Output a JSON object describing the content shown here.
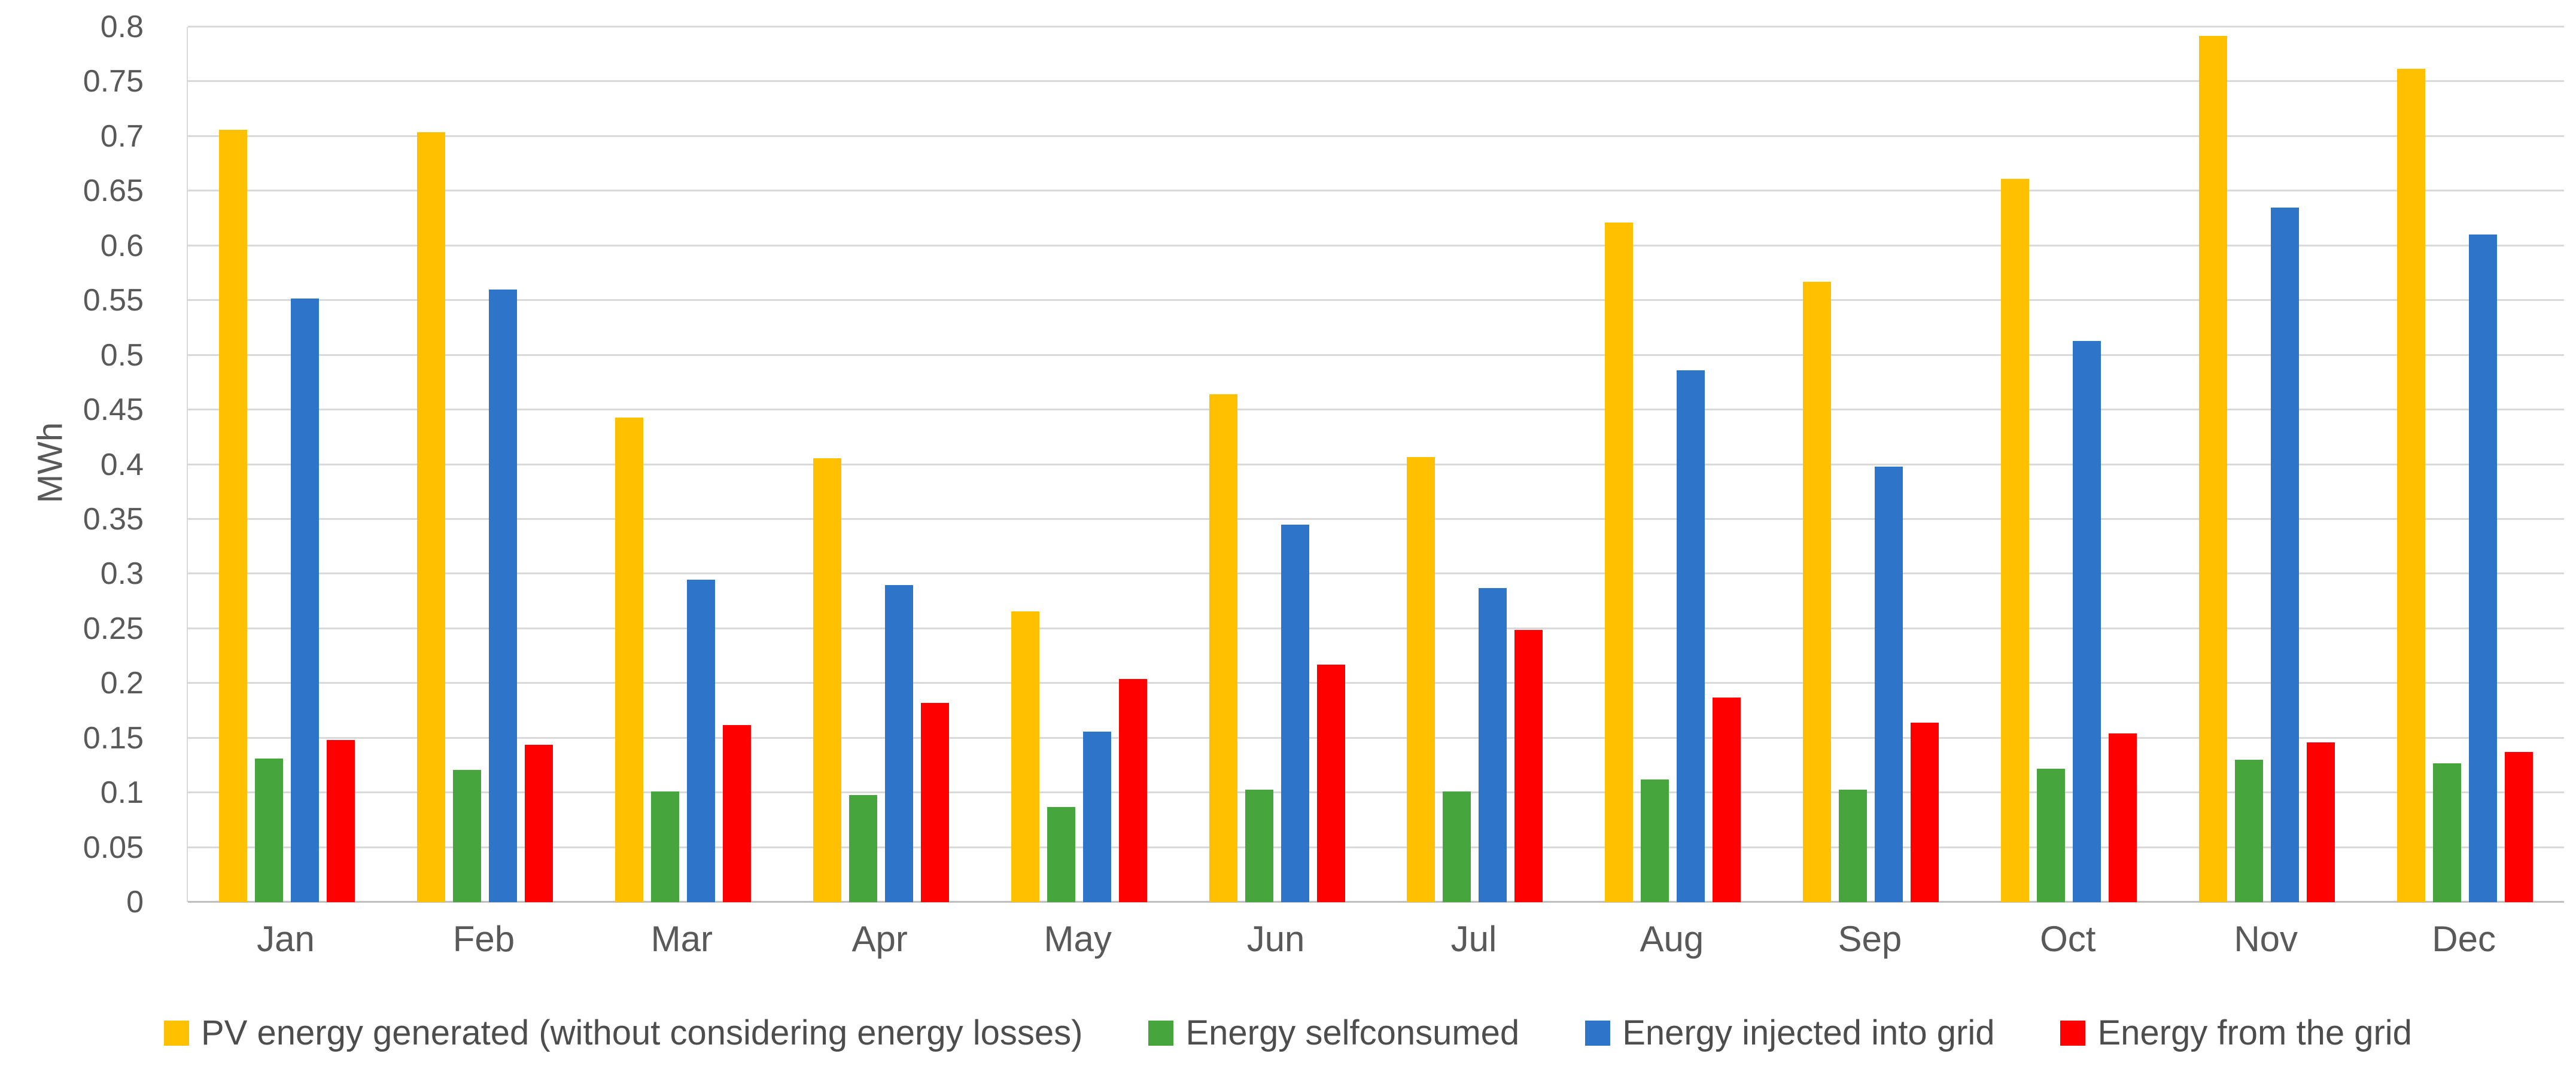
{
  "chart_data": {
    "type": "bar",
    "title": "",
    "xlabel": "",
    "ylabel": "MWh",
    "categories": [
      "Jan",
      "Feb",
      "Mar",
      "Apr",
      "May",
      "Jun",
      "Jul",
      "Aug",
      "Sep",
      "Oct",
      "Nov",
      "Dec"
    ],
    "series": [
      {
        "name": "PV energy generated (without considering energy losses)",
        "color": "#FFC000",
        "values": [
          0.706,
          0.704,
          0.443,
          0.406,
          0.266,
          0.464,
          0.407,
          0.621,
          0.567,
          0.661,
          0.792,
          0.762
        ]
      },
      {
        "name": "Energy selfconsumed",
        "color": "#46A53D",
        "values": [
          0.131,
          0.121,
          0.101,
          0.098,
          0.087,
          0.103,
          0.101,
          0.112,
          0.103,
          0.122,
          0.13,
          0.127
        ]
      },
      {
        "name": "Energy injected into grid",
        "color": "#2E74C8",
        "values": [
          0.552,
          0.56,
          0.295,
          0.29,
          0.156,
          0.345,
          0.287,
          0.486,
          0.398,
          0.513,
          0.635,
          0.61
        ]
      },
      {
        "name": "Energy from the grid",
        "color": "#FF0000",
        "values": [
          0.148,
          0.144,
          0.162,
          0.182,
          0.204,
          0.217,
          0.249,
          0.187,
          0.164,
          0.154,
          0.146,
          0.137
        ]
      }
    ],
    "ylim": [
      0,
      0.8
    ],
    "ytick_step": 0.05,
    "ytick_labels": [
      "0",
      "0.05",
      "0.1",
      "0.15",
      "0.2",
      "0.25",
      "0.3",
      "0.35",
      "0.4",
      "0.45",
      "0.5",
      "0.55",
      "0.6",
      "0.65",
      "0.7",
      "0.75",
      "0.8"
    ],
    "grid": true,
    "legend_position": "bottom"
  },
  "colors": {
    "gridline": "#D9D9D9",
    "zero_axis_line": "#BFBFBF",
    "tick_text": "#595959"
  }
}
